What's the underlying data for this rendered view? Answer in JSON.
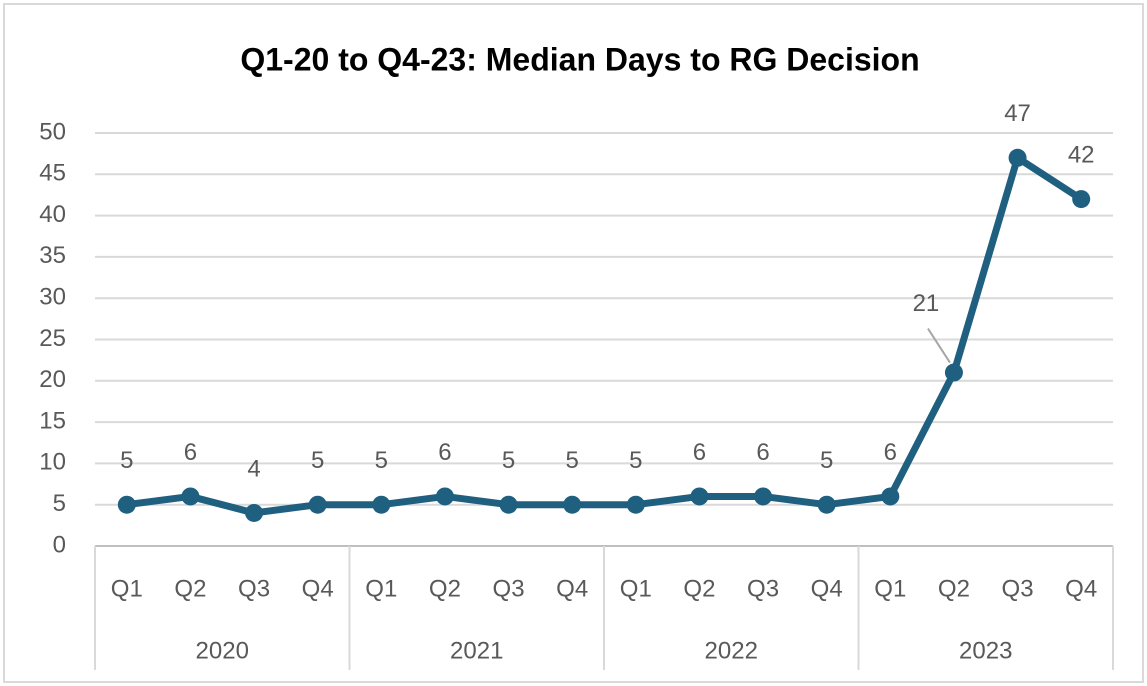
{
  "chart_data": {
    "type": "line",
    "title": "Q1-20 to Q4-23: Median Days to RG Decision",
    "categories": [
      "Q1",
      "Q2",
      "Q3",
      "Q4",
      "Q1",
      "Q2",
      "Q3",
      "Q4",
      "Q1",
      "Q2",
      "Q3",
      "Q4",
      "Q1",
      "Q2",
      "Q3",
      "Q4"
    ],
    "category_groups": [
      "2020",
      "2021",
      "2022",
      "2023"
    ],
    "values": [
      5,
      6,
      4,
      5,
      5,
      6,
      5,
      5,
      5,
      6,
      6,
      5,
      6,
      21,
      47,
      42
    ],
    "color": "#1f5f80",
    "ylim": [
      0,
      50
    ],
    "yticks": [
      0,
      5,
      10,
      15,
      20,
      25,
      30,
      35,
      40,
      45,
      50
    ],
    "grid": true
  }
}
